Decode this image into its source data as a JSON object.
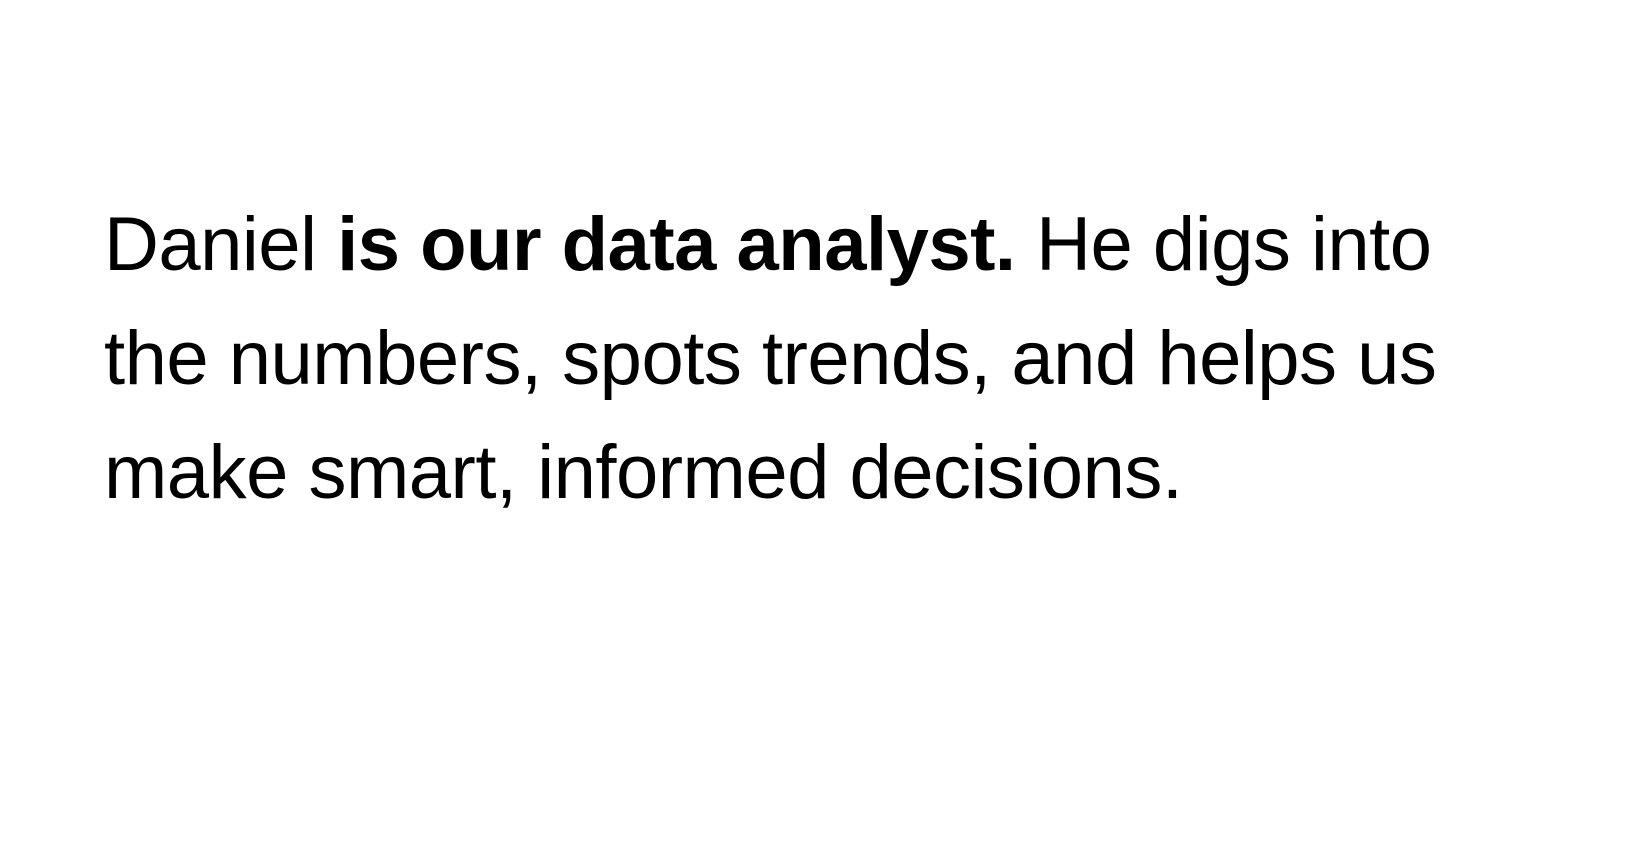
{
  "text": {
    "name": "Daniel",
    "space_1": " ",
    "bold_phrase": "is our data analyst.",
    "rest": " He digs into the numbers, spots trends, and helps us make smart, informed decisions."
  },
  "colors": {
    "background": "#ffffff",
    "text": "#000000"
  }
}
